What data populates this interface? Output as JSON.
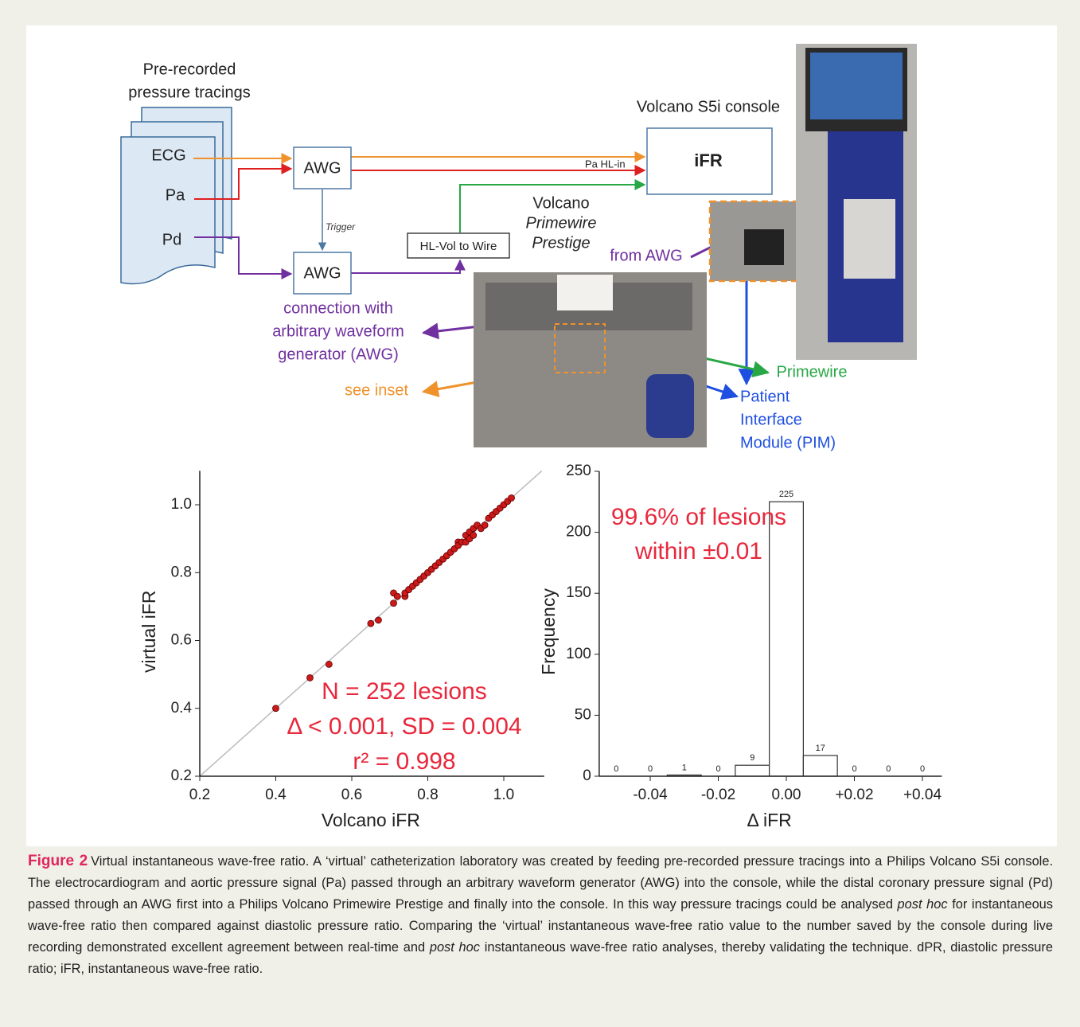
{
  "diagram": {
    "source_label": [
      "Pre-recorded",
      "pressure tracings"
    ],
    "signals": [
      "ECG",
      "Pa",
      "Pd"
    ],
    "awg_top": "AWG",
    "awg_bottom": "AWG",
    "trigger": "Trigger",
    "pa_hl_in": "Pa HL-in",
    "converter": "HL-Vol to Wire",
    "console_title": "Volcano S5i console",
    "console_box": "iFR",
    "wire_label": [
      "Volcano",
      "Primewire",
      "Prestige"
    ],
    "connection_label": [
      "connection with",
      "arbitrary waveform",
      "generator (AWG)"
    ],
    "see_inset": "see inset",
    "from_awg": "from AWG",
    "primewire": "Primewire",
    "pim": [
      "Patient",
      "Interface",
      "Module (PIM)"
    ]
  },
  "chart_data": [
    {
      "type": "scatter",
      "xlabel": "Volcano iFR",
      "ylabel": "virtual iFR",
      "color": "#cc1a1a",
      "x": [
        0.4,
        0.49,
        0.54,
        0.65,
        0.67,
        0.71,
        0.71,
        0.72,
        0.74,
        0.74,
        0.75,
        0.76,
        0.77,
        0.78,
        0.79,
        0.8,
        0.81,
        0.82,
        0.83,
        0.84,
        0.85,
        0.86,
        0.87,
        0.88,
        0.88,
        0.89,
        0.9,
        0.9,
        0.91,
        0.91,
        0.92,
        0.92,
        0.93,
        0.94,
        0.95,
        0.96,
        0.97,
        0.98,
        0.99,
        1.0,
        1.01,
        1.02
      ],
      "values": [
        0.4,
        0.49,
        0.53,
        0.65,
        0.66,
        0.71,
        0.74,
        0.73,
        0.73,
        0.74,
        0.75,
        0.76,
        0.77,
        0.78,
        0.79,
        0.8,
        0.81,
        0.82,
        0.83,
        0.84,
        0.85,
        0.86,
        0.87,
        0.89,
        0.88,
        0.89,
        0.89,
        0.91,
        0.92,
        0.9,
        0.93,
        0.91,
        0.94,
        0.93,
        0.94,
        0.96,
        0.97,
        0.98,
        0.99,
        1.0,
        1.01,
        1.02
      ],
      "xlim": [
        0.2,
        1.1
      ],
      "ylim": [
        0.2,
        1.1
      ],
      "xticks": [
        0.2,
        0.4,
        0.6,
        0.8,
        {
          "value": 1,
          "label": "1.0"
        }
      ],
      "yticks": [
        0.2,
        0.4,
        0.6,
        0.8,
        {
          "value": 1,
          "label": "1.0"
        }
      ],
      "identity_line": true,
      "annotations": [
        "N = 252 lesions",
        "Δ < 0.001, SD = 0.004",
        "r² = 0.998"
      ],
      "annotation_color": "#e8283c"
    },
    {
      "type": "histogram",
      "xlabel": "Δ iFR",
      "ylabel": "Frequency",
      "color": "#ffffff",
      "edgecolor": "#333333",
      "bins": [
        -0.055,
        -0.045,
        -0.035,
        -0.025,
        -0.015,
        -0.005,
        0.005,
        0.015,
        0.025,
        0.035,
        0.045
      ],
      "values": [
        0,
        0,
        1,
        0,
        9,
        225,
        17,
        0,
        0,
        0
      ],
      "xlim": [
        -0.055,
        0.045
      ],
      "ylim": [
        0,
        250
      ],
      "xticks": [
        -0.04,
        -0.02,
        {
          "value": 0,
          "label": "0.00"
        },
        {
          "value": 0.02,
          "label": "+0.02"
        },
        {
          "value": 0.04,
          "label": "+0.04"
        }
      ],
      "yticks": [
        0,
        50,
        100,
        150,
        200,
        250
      ],
      "annotations": [
        "99.6% of lesions",
        "within ±0.01"
      ],
      "annotation_color": "#e8283c"
    }
  ],
  "caption": {
    "label": "Figure 2",
    "segments": [
      {
        "text": "Virtual instantaneous wave-free ratio. A ‘virtual’ catheterization laboratory was created by feeding pre-recorded pressure tracings into a Philips Volcano S5i console. The electrocardiogram and aortic pressure signal (Pa) passed through an arbitrary waveform generator (AWG) into the console, while the distal coronary pressure signal (Pd) passed through an AWG first into a Philips Volcano Primewire Prestige and finally into the console. In this way pressure tracings could be analysed "
      },
      {
        "text": "post hoc",
        "italic": true
      },
      {
        "text": " for instantaneous wave-free ratio then compared against diastolic pressure ratio. Comparing the ‘virtual’ instantaneous wave-free ratio value to the number saved by the console during live recording demonstrated excellent agreement between real-time and "
      },
      {
        "text": "post hoc",
        "italic": true
      },
      {
        "text": " instantaneous wave-free ratio analyses, thereby validating the technique. dPR, diastolic pressure ratio; iFR, instantaneous wave-free ratio."
      }
    ]
  }
}
